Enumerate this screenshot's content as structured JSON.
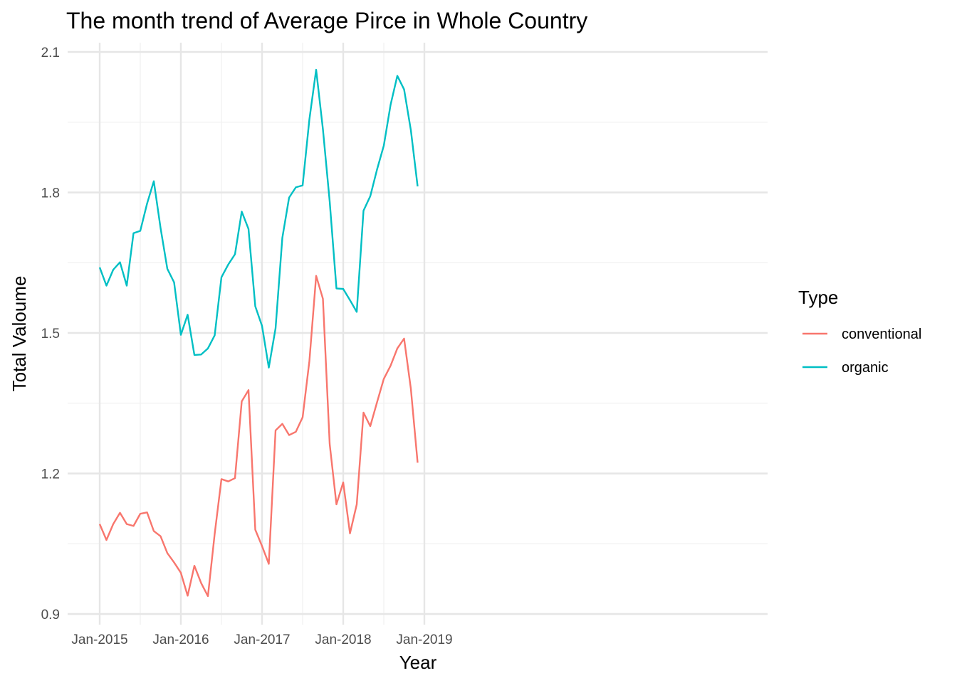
{
  "chart_data": {
    "type": "line",
    "title": "The month trend of Average Pirce in Whole Country",
    "xlabel": "Year",
    "ylabel": "Total Valoume",
    "x_ticks": [
      "Jan-2015",
      "Jan-2016",
      "Jan-2017",
      "Jan-2018",
      "Jan-2019"
    ],
    "y_ticks": [
      "0.9",
      "1.2",
      "1.5",
      "1.8",
      "2.1"
    ],
    "ylim": [
      0.9,
      2.1
    ],
    "xlim": [
      "2015-01",
      "2019-01"
    ],
    "grid": true,
    "legend": {
      "title": "Type",
      "position": "right"
    },
    "x": [
      "2015-01",
      "2015-02",
      "2015-03",
      "2015-04",
      "2015-05",
      "2015-06",
      "2015-07",
      "2015-08",
      "2015-09",
      "2015-10",
      "2015-11",
      "2015-12",
      "2016-01",
      "2016-02",
      "2016-03",
      "2016-04",
      "2016-05",
      "2016-06",
      "2016-07",
      "2016-08",
      "2016-09",
      "2016-10",
      "2016-11",
      "2016-12",
      "2017-01",
      "2017-02",
      "2017-03",
      "2017-04",
      "2017-05",
      "2017-06",
      "2017-07",
      "2017-08",
      "2017-09",
      "2017-10",
      "2017-11",
      "2017-12",
      "2018-01",
      "2018-02",
      "2018-03",
      "2018-04",
      "2018-05",
      "2018-06",
      "2018-07",
      "2018-08",
      "2018-09",
      "2018-10",
      "2018-11",
      "2018-12"
    ],
    "series": [
      {
        "name": "conventional",
        "color": "#F8766D",
        "values": [
          1.092,
          1.058,
          1.092,
          1.116,
          1.092,
          1.088,
          1.114,
          1.117,
          1.077,
          1.066,
          1.03,
          1.01,
          0.988,
          0.939,
          1.003,
          0.966,
          0.938,
          1.071,
          1.188,
          1.183,
          1.19,
          1.354,
          1.378,
          1.08,
          1.045,
          1.007,
          1.292,
          1.306,
          1.282,
          1.289,
          1.32,
          1.44,
          1.622,
          1.573,
          1.263,
          1.134,
          1.181,
          1.072,
          1.134,
          1.33,
          1.301,
          1.352,
          1.402,
          1.43,
          1.467,
          1.488,
          1.381,
          1.223
        ]
      },
      {
        "name": "organic",
        "color": "#00BFC4",
        "values": [
          1.64,
          1.601,
          1.635,
          1.651,
          1.601,
          1.713,
          1.718,
          1.776,
          1.824,
          1.724,
          1.637,
          1.608,
          1.496,
          1.539,
          1.453,
          1.454,
          1.467,
          1.495,
          1.619,
          1.646,
          1.668,
          1.759,
          1.722,
          1.557,
          1.515,
          1.426,
          1.51,
          1.703,
          1.789,
          1.811,
          1.815,
          1.956,
          2.062,
          1.935,
          1.781,
          1.595,
          1.594,
          1.57,
          1.545,
          1.761,
          1.792,
          1.849,
          1.9,
          1.987,
          2.049,
          2.02,
          1.933,
          1.813
        ]
      }
    ]
  }
}
